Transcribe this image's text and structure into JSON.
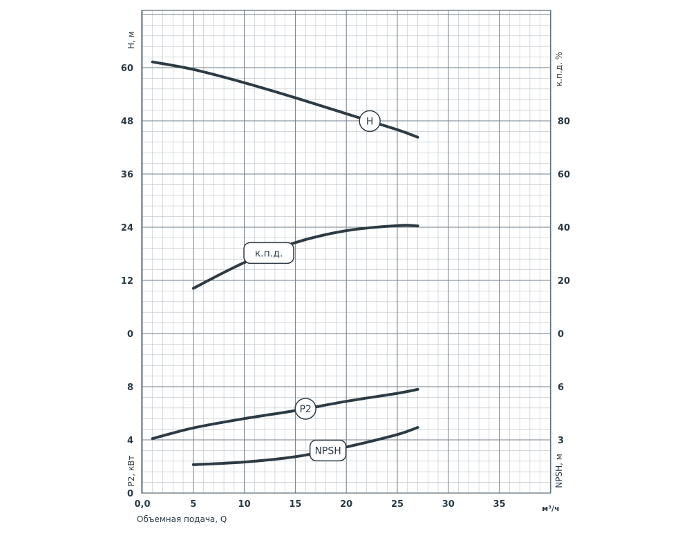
{
  "chart_data": {
    "type": "line",
    "x_ticks": [
      "0,0",
      "5",
      "10",
      "15",
      "20",
      "25",
      "30",
      "35"
    ],
    "x_unit": "м³/ч",
    "xlabel": "Объемная подача, Q",
    "top_panel": {
      "left_axis": {
        "label": "H, м",
        "ticks": [
          "0",
          "12",
          "24",
          "36",
          "48",
          "60"
        ]
      },
      "right_axis": {
        "label": "к.п.д. %",
        "ticks": [
          "0",
          "20",
          "40",
          "60",
          "80"
        ]
      }
    },
    "bottom_panel": {
      "left_axis": {
        "label": "P2, кВт",
        "ticks": [
          "0",
          "4",
          "8"
        ]
      },
      "right_axis": {
        "label": "NPSH, м",
        "ticks": [
          "3",
          "6"
        ]
      }
    },
    "series": [
      {
        "name": "H",
        "axis": "H",
        "x": [
          1,
          5,
          10,
          15,
          20,
          25,
          27
        ],
        "y": [
          61.3,
          59.6,
          56.6,
          53.2,
          49.6,
          46.0,
          44.3
        ]
      },
      {
        "name": "к.п.д.",
        "axis": "kpd",
        "x": [
          5,
          10,
          15,
          20,
          25,
          27
        ],
        "y": [
          17,
          26.7,
          34.2,
          38.7,
          40.6,
          40.5
        ]
      },
      {
        "name": "P2",
        "axis": "P2",
        "x": [
          1,
          5,
          10,
          15,
          20,
          25,
          27
        ],
        "y": [
          4.1,
          4.9,
          5.6,
          6.2,
          6.9,
          7.5,
          7.8
        ]
      },
      {
        "name": "NPSH",
        "axis": "NPSH",
        "x": [
          5,
          10,
          15,
          20,
          25,
          27
        ],
        "y": [
          1.6,
          1.75,
          2.05,
          2.6,
          3.3,
          3.7
        ]
      }
    ]
  }
}
